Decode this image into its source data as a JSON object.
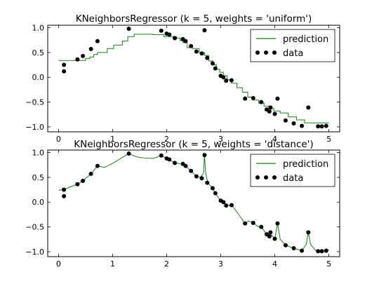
{
  "chart_data": [
    {
      "type": "line",
      "title": "KNeighborsRegressor (k = 5, weights = 'uniform')",
      "xlim": [
        -0.2,
        5.2
      ],
      "ylim": [
        -1.1,
        1.05
      ],
      "xticks": [
        0,
        1,
        2,
        3,
        4,
        5
      ],
      "xtick_labels": [
        "0",
        "1",
        "2",
        "3",
        "4",
        "5"
      ],
      "yticks": [
        -1.0,
        -0.5,
        0.0,
        0.5,
        1.0
      ],
      "ytick_labels": [
        "−1.0",
        "−0.5",
        "0.0",
        "0.5",
        "1.0"
      ],
      "legend": {
        "position": "top-right",
        "entries": [
          {
            "label": "prediction",
            "marker": "line",
            "color": "#1f7a1f"
          },
          {
            "label": "data",
            "marker": "dots",
            "color": "#000000"
          }
        ]
      },
      "series": [
        {
          "name": "prediction",
          "kind": "step",
          "color": "#1f7a1f",
          "x": [
            0.0,
            0.25,
            0.35,
            0.5,
            0.58,
            0.65,
            0.72,
            0.78,
            0.9,
            1.02,
            1.1,
            1.18,
            1.28,
            1.4,
            1.5,
            1.75,
            1.95,
            2.08,
            2.18,
            2.25,
            2.3,
            2.38,
            2.48,
            2.6,
            2.7,
            2.78,
            2.85,
            2.92,
            2.98,
            3.05,
            3.12,
            3.2,
            3.3,
            3.4,
            3.5,
            3.6,
            3.7,
            3.8,
            3.9,
            3.98,
            4.1,
            4.25,
            4.4,
            4.55,
            4.7,
            5.0
          ],
          "y": [
            0.34,
            0.34,
            0.34,
            0.38,
            0.41,
            0.46,
            0.5,
            0.5,
            0.58,
            0.65,
            0.65,
            0.73,
            0.82,
            0.87,
            0.87,
            0.86,
            0.82,
            0.82,
            0.79,
            0.74,
            0.7,
            0.6,
            0.58,
            0.5,
            0.44,
            0.33,
            0.25,
            0.16,
            0.1,
            0.03,
            -0.05,
            -0.12,
            -0.21,
            -0.3,
            -0.4,
            -0.46,
            -0.52,
            -0.58,
            -0.63,
            -0.68,
            -0.72,
            -0.8,
            -0.86,
            -0.92,
            -0.92,
            -0.92
          ]
        },
        {
          "name": "data",
          "kind": "scatter",
          "color": "#000000",
          "x": [
            0.1,
            0.1,
            0.35,
            0.45,
            0.6,
            0.72,
            1.3,
            1.9,
            2.0,
            2.05,
            2.15,
            2.3,
            2.35,
            2.45,
            2.55,
            2.65,
            2.7,
            2.75,
            2.85,
            2.9,
            3.0,
            3.05,
            3.1,
            3.2,
            3.45,
            3.6,
            3.75,
            3.85,
            3.9,
            3.92,
            4.0,
            4.05,
            4.2,
            4.35,
            4.5,
            4.62,
            4.8,
            4.87,
            4.95
          ],
          "y": [
            0.25,
            0.12,
            0.36,
            0.43,
            0.57,
            0.73,
            0.98,
            0.94,
            0.88,
            0.86,
            0.79,
            0.77,
            0.73,
            0.63,
            0.52,
            0.48,
            0.95,
            0.39,
            0.28,
            0.18,
            0.03,
            0.0,
            -0.07,
            -0.06,
            -0.43,
            -0.42,
            -0.5,
            -0.65,
            -0.69,
            -0.61,
            -0.74,
            -0.43,
            -0.87,
            -0.93,
            -0.98,
            -0.61,
            -0.99,
            -0.99,
            -0.98
          ]
        }
      ]
    },
    {
      "type": "line",
      "title": "KNeighborsRegressor (k = 5, weights = 'distance')",
      "xlim": [
        -0.2,
        5.2
      ],
      "ylim": [
        -1.1,
        1.05
      ],
      "xticks": [
        0,
        1,
        2,
        3,
        4,
        5
      ],
      "xtick_labels": [
        "0",
        "1",
        "2",
        "3",
        "4",
        "5"
      ],
      "yticks": [
        -1.0,
        -0.5,
        0.0,
        0.5,
        1.0
      ],
      "ytick_labels": [
        "−1.0",
        "−0.5",
        "0.0",
        "0.5",
        "1.0"
      ],
      "legend": {
        "position": "top-right",
        "entries": [
          {
            "label": "prediction",
            "marker": "line",
            "color": "#1f7a1f"
          },
          {
            "label": "data",
            "marker": "dots",
            "color": "#000000"
          }
        ]
      },
      "series": [
        {
          "name": "prediction",
          "kind": "line",
          "color": "#1f7a1f",
          "x": [
            0.0,
            0.1,
            0.2,
            0.35,
            0.45,
            0.6,
            0.72,
            0.85,
            1.0,
            1.15,
            1.3,
            1.45,
            1.6,
            1.75,
            1.9,
            2.0,
            2.05,
            2.15,
            2.3,
            2.35,
            2.45,
            2.55,
            2.62,
            2.68,
            2.7,
            2.72,
            2.76,
            2.85,
            2.9,
            3.0,
            3.05,
            3.1,
            3.2,
            3.3,
            3.45,
            3.52,
            3.6,
            3.7,
            3.75,
            3.85,
            3.9,
            3.92,
            3.95,
            4.0,
            4.05,
            4.1,
            4.2,
            4.35,
            4.5,
            4.58,
            4.62,
            4.66,
            4.75,
            4.8,
            4.87,
            4.95,
            5.0
          ],
          "y": [
            0.24,
            0.25,
            0.3,
            0.36,
            0.43,
            0.57,
            0.73,
            0.7,
            0.78,
            0.88,
            0.98,
            0.91,
            0.89,
            0.88,
            0.94,
            0.88,
            0.86,
            0.79,
            0.77,
            0.73,
            0.63,
            0.52,
            0.5,
            0.58,
            0.95,
            0.6,
            0.39,
            0.28,
            0.18,
            0.03,
            0.0,
            -0.07,
            -0.06,
            -0.2,
            -0.43,
            -0.38,
            -0.42,
            -0.5,
            -0.5,
            -0.65,
            -0.69,
            -0.61,
            -0.68,
            -0.74,
            -0.43,
            -0.75,
            -0.87,
            -0.93,
            -0.98,
            -0.85,
            -0.61,
            -0.85,
            -0.97,
            -0.99,
            -0.99,
            -0.98,
            -0.96
          ]
        },
        {
          "name": "data",
          "kind": "scatter",
          "color": "#000000",
          "x": [
            0.1,
            0.1,
            0.35,
            0.45,
            0.6,
            0.72,
            1.3,
            1.9,
            2.0,
            2.05,
            2.15,
            2.3,
            2.35,
            2.45,
            2.55,
            2.65,
            2.7,
            2.75,
            2.85,
            2.9,
            3.0,
            3.05,
            3.1,
            3.2,
            3.45,
            3.6,
            3.75,
            3.85,
            3.9,
            3.92,
            4.0,
            4.05,
            4.2,
            4.35,
            4.5,
            4.62,
            4.8,
            4.87,
            4.95
          ],
          "y": [
            0.25,
            0.12,
            0.36,
            0.43,
            0.57,
            0.73,
            0.98,
            0.94,
            0.88,
            0.86,
            0.79,
            0.77,
            0.73,
            0.63,
            0.52,
            0.48,
            0.95,
            0.39,
            0.28,
            0.18,
            0.03,
            0.0,
            -0.07,
            -0.06,
            -0.43,
            -0.42,
            -0.5,
            -0.65,
            -0.69,
            -0.61,
            -0.74,
            -0.43,
            -0.87,
            -0.93,
            -0.98,
            -0.61,
            -0.99,
            -0.99,
            -0.98
          ]
        }
      ]
    }
  ]
}
